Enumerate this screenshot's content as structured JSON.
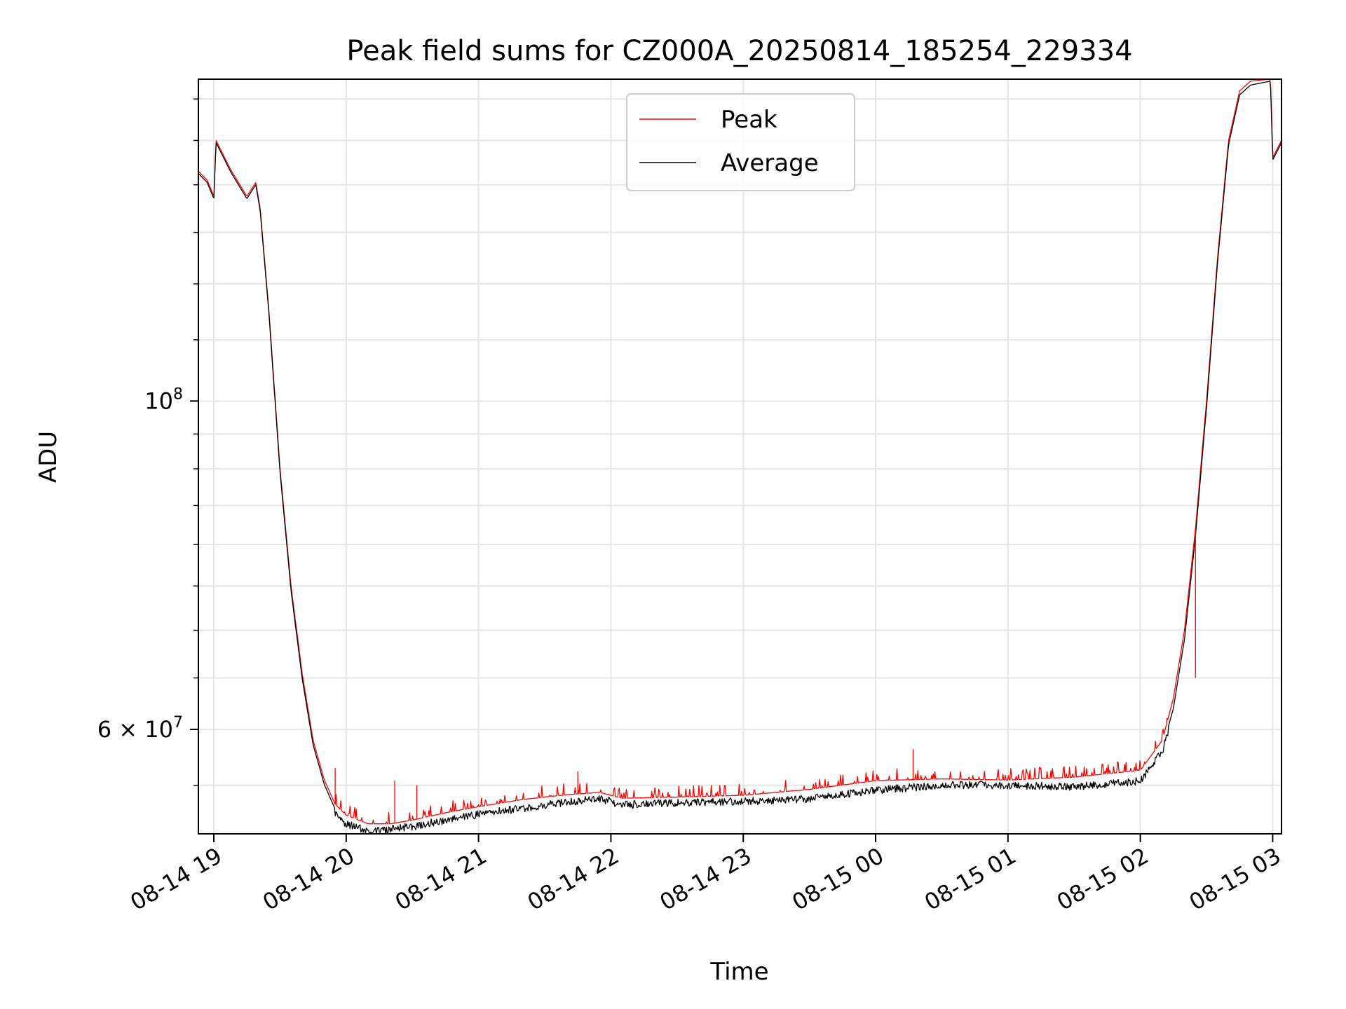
{
  "chart_data": {
    "type": "line",
    "title": "Peak field sums for CZ000A_20250814_185254_229334",
    "xlabel": "Time",
    "ylabel": "ADU",
    "y_scale": "log",
    "ylim": [
      51000000,
      165000000
    ],
    "xlim": [
      "2025-08-14 18:53",
      "2025-08-15 03:04"
    ],
    "grid": true,
    "legend_position": "top-center",
    "x_ticks": [
      {
        "t": "2025-08-14 19:00",
        "label": "08-14 19"
      },
      {
        "t": "2025-08-14 20:00",
        "label": "08-14 20"
      },
      {
        "t": "2025-08-14 21:00",
        "label": "08-14 21"
      },
      {
        "t": "2025-08-14 22:00",
        "label": "08-14 22"
      },
      {
        "t": "2025-08-14 23:00",
        "label": "08-14 23"
      },
      {
        "t": "2025-08-15 00:00",
        "label": "08-15 00"
      },
      {
        "t": "2025-08-15 01:00",
        "label": "08-15 01"
      },
      {
        "t": "2025-08-15 02:00",
        "label": "08-15 02"
      },
      {
        "t": "2025-08-15 03:00",
        "label": "08-15 03"
      }
    ],
    "y_major_ticks": [
      {
        "value": 60000000,
        "mantissa": "6",
        "exponent": "7",
        "times": "×"
      },
      {
        "value": 100000000,
        "mantissa": "",
        "exponent": "8",
        "times": ""
      }
    ],
    "y_minor_ticks": [
      55000000,
      65000000,
      70000000,
      75000000,
      80000000,
      85000000,
      90000000,
      95000000,
      110000000,
      120000000,
      130000000,
      140000000,
      150000000,
      160000000
    ],
    "series": [
      {
        "name": "Peak",
        "color": "#ff0000",
        "points": [
          [
            "2025-08-14 18:53",
            143000000
          ],
          [
            "2025-08-14 18:57",
            141000000
          ],
          [
            "2025-08-14 19:00",
            137500000
          ],
          [
            "2025-08-14 19:01",
            150000000
          ],
          [
            "2025-08-14 19:08",
            143000000
          ],
          [
            "2025-08-14 19:15",
            137500000
          ],
          [
            "2025-08-14 19:19",
            140500000
          ],
          [
            "2025-08-14 19:21",
            135000000
          ],
          [
            "2025-08-14 19:25",
            115000000
          ],
          [
            "2025-08-14 19:30",
            90000000
          ],
          [
            "2025-08-14 19:35",
            75000000
          ],
          [
            "2025-08-14 19:40",
            65500000
          ],
          [
            "2025-08-14 19:45",
            59000000
          ],
          [
            "2025-08-14 19:50",
            55500000
          ],
          [
            "2025-08-14 19:55",
            53400000
          ],
          [
            "2025-08-14 20:00",
            52500000
          ],
          [
            "2025-08-14 20:10",
            51800000
          ],
          [
            "2025-08-14 20:20",
            51800000
          ],
          [
            "2025-08-14 20:30",
            52100000
          ],
          [
            "2025-08-14 20:45",
            52700000
          ],
          [
            "2025-08-14 21:00",
            53200000
          ],
          [
            "2025-08-14 21:20",
            53800000
          ],
          [
            "2025-08-14 21:40",
            54200000
          ],
          [
            "2025-08-14 21:55",
            54400000
          ],
          [
            "2025-08-14 22:05",
            53900000
          ],
          [
            "2025-08-14 22:30",
            54000000
          ],
          [
            "2025-08-14 23:00",
            54150000
          ],
          [
            "2025-08-14 23:30",
            54650000
          ],
          [
            "2025-08-15 00:00",
            55400000
          ],
          [
            "2025-08-15 00:30",
            55550000
          ],
          [
            "2025-08-15 01:00",
            55450000
          ],
          [
            "2025-08-15 01:30",
            55700000
          ],
          [
            "2025-08-15 02:00",
            56300000
          ],
          [
            "2025-08-15 02:10",
            59000000
          ],
          [
            "2025-08-15 02:15",
            63000000
          ],
          [
            "2025-08-15 02:20",
            70000000
          ],
          [
            "2025-08-15 02:25",
            82000000
          ],
          [
            "2025-08-15 02:30",
            100000000
          ],
          [
            "2025-08-15 02:35",
            125000000
          ],
          [
            "2025-08-15 02:40",
            150000000
          ],
          [
            "2025-08-15 02:45",
            162000000
          ],
          [
            "2025-08-15 02:50",
            164500000
          ],
          [
            "2025-08-15 02:59",
            165000000
          ],
          [
            "2025-08-15 03:00",
            146000000
          ],
          [
            "2025-08-15 03:04",
            150000000
          ]
        ]
      },
      {
        "name": "Average",
        "color": "#000000",
        "points": [
          [
            "2025-08-14 18:53",
            142500000
          ],
          [
            "2025-08-14 18:57",
            140500000
          ],
          [
            "2025-08-14 19:00",
            137000000
          ],
          [
            "2025-08-14 19:01",
            149500000
          ],
          [
            "2025-08-14 19:08",
            142500000
          ],
          [
            "2025-08-14 19:15",
            137000000
          ],
          [
            "2025-08-14 19:19",
            140000000
          ],
          [
            "2025-08-14 19:21",
            134500000
          ],
          [
            "2025-08-14 19:25",
            114500000
          ],
          [
            "2025-08-14 19:30",
            89500000
          ],
          [
            "2025-08-14 19:35",
            74500000
          ],
          [
            "2025-08-14 19:40",
            65000000
          ],
          [
            "2025-08-14 19:45",
            58600000
          ],
          [
            "2025-08-14 19:50",
            55100000
          ],
          [
            "2025-08-14 19:55",
            53000000
          ],
          [
            "2025-08-14 20:00",
            52100000
          ],
          [
            "2025-08-14 20:10",
            51500000
          ],
          [
            "2025-08-14 20:20",
            51650000
          ],
          [
            "2025-08-14 20:30",
            51900000
          ],
          [
            "2025-08-14 20:45",
            52400000
          ],
          [
            "2025-08-14 21:00",
            52900000
          ],
          [
            "2025-08-14 21:20",
            53400000
          ],
          [
            "2025-08-14 21:40",
            53900000
          ],
          [
            "2025-08-14 21:55",
            54200000
          ],
          [
            "2025-08-14 22:05",
            53700000
          ],
          [
            "2025-08-14 22:30",
            53850000
          ],
          [
            "2025-08-14 23:00",
            53950000
          ],
          [
            "2025-08-14 23:30",
            54200000
          ],
          [
            "2025-08-15 00:00",
            54900000
          ],
          [
            "2025-08-15 00:30",
            55350000
          ],
          [
            "2025-08-15 01:00",
            55350000
          ],
          [
            "2025-08-15 01:30",
            55200000
          ],
          [
            "2025-08-15 02:00",
            55700000
          ],
          [
            "2025-08-15 02:10",
            58300000
          ],
          [
            "2025-08-15 02:15",
            62000000
          ],
          [
            "2025-08-15 02:20",
            69000000
          ],
          [
            "2025-08-15 02:25",
            81000000
          ],
          [
            "2025-08-15 02:30",
            99000000
          ],
          [
            "2025-08-15 02:35",
            124000000
          ],
          [
            "2025-08-15 02:40",
            149000000
          ],
          [
            "2025-08-15 02:45",
            161000000
          ],
          [
            "2025-08-15 02:50",
            163500000
          ],
          [
            "2025-08-15 02:59",
            164500000
          ],
          [
            "2025-08-15 03:00",
            145500000
          ],
          [
            "2025-08-15 03:04",
            149500000
          ]
        ]
      }
    ],
    "peak_spikes": [
      [
        "2025-08-14 19:55",
        56500000
      ],
      [
        "2025-08-14 20:22",
        55400000
      ],
      [
        "2025-08-14 20:32",
        55000000
      ],
      [
        "2025-08-14 21:45",
        56200000
      ],
      [
        "2025-08-15 00:17",
        58200000
      ],
      [
        "2025-08-15 02:25",
        65000000
      ]
    ]
  }
}
